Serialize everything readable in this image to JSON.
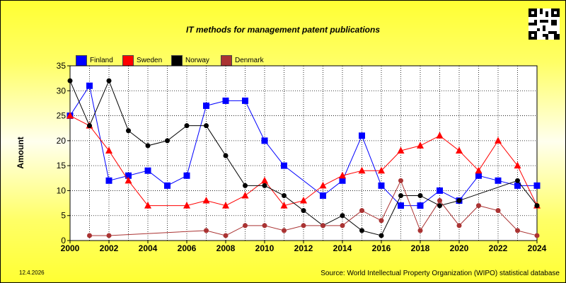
{
  "chart_data": {
    "type": "line",
    "title": "IT methods for management patent publications",
    "ylabel": "Amount",
    "xlabel": "",
    "ylim": [
      0,
      35
    ],
    "xlim": [
      2000,
      2024
    ],
    "yticks": [
      0,
      5,
      10,
      15,
      20,
      25,
      30,
      35
    ],
    "xticks": [
      2000,
      2002,
      2004,
      2006,
      2008,
      2010,
      2012,
      2014,
      2016,
      2018,
      2020,
      2022,
      2024
    ],
    "grid": true,
    "legend_position": "top-left",
    "series": [
      {
        "name": "Finland",
        "color": "#0000ff",
        "marker": "square",
        "x": [
          2000,
          2001,
          2002,
          2003,
          2004,
          2005,
          2006,
          2007,
          2008,
          2009,
          2010,
          2011,
          2013,
          2014,
          2015,
          2016,
          2017,
          2018,
          2019,
          2020,
          2021,
          2022,
          2023,
          2024
        ],
        "values": [
          25,
          31,
          12,
          13,
          14,
          11,
          13,
          27,
          28,
          28,
          20,
          15,
          9,
          12,
          21,
          11,
          7,
          7,
          10,
          8,
          13,
          12,
          11,
          11
        ]
      },
      {
        "name": "Sweden",
        "color": "#ff0000",
        "marker": "triangle",
        "x": [
          2000,
          2001,
          2002,
          2003,
          2004,
          2006,
          2007,
          2008,
          2009,
          2010,
          2011,
          2012,
          2013,
          2014,
          2015,
          2016,
          2017,
          2018,
          2019,
          2020,
          2021,
          2022,
          2023,
          2024
        ],
        "values": [
          25,
          23,
          18,
          12,
          7,
          7,
          8,
          7,
          9,
          12,
          7,
          8,
          11,
          13,
          14,
          14,
          18,
          19,
          21,
          18,
          14,
          20,
          15,
          7
        ]
      },
      {
        "name": "Norway",
        "color": "#000000",
        "marker": "circle",
        "x": [
          2000,
          2001,
          2002,
          2003,
          2004,
          2005,
          2006,
          2007,
          2008,
          2009,
          2010,
          2011,
          2012,
          2013,
          2014,
          2015,
          2016,
          2017,
          2018,
          2019,
          2020,
          2023,
          2024
        ],
        "values": [
          32,
          23,
          32,
          22,
          19,
          20,
          23,
          23,
          17,
          11,
          11,
          9,
          6,
          3,
          5,
          2,
          1,
          9,
          9,
          7,
          8,
          12,
          7
        ]
      },
      {
        "name": "Denmark",
        "color": "#aa3333",
        "marker": "circle",
        "x": [
          2001,
          2002,
          2007,
          2008,
          2009,
          2010,
          2011,
          2012,
          2013,
          2014,
          2015,
          2016,
          2017,
          2018,
          2019,
          2020,
          2021,
          2022,
          2023,
          2024
        ],
        "values": [
          1,
          1,
          2,
          1,
          3,
          3,
          2,
          3,
          3,
          3,
          6,
          4,
          12,
          2,
          8,
          3,
          7,
          6,
          2,
          1
        ]
      }
    ]
  },
  "footer": {
    "date": "12.4.2026",
    "source": "Source: World Intellectual Property Organization (WIPO) statistical database"
  },
  "qr_icon": "qr-code-icon"
}
